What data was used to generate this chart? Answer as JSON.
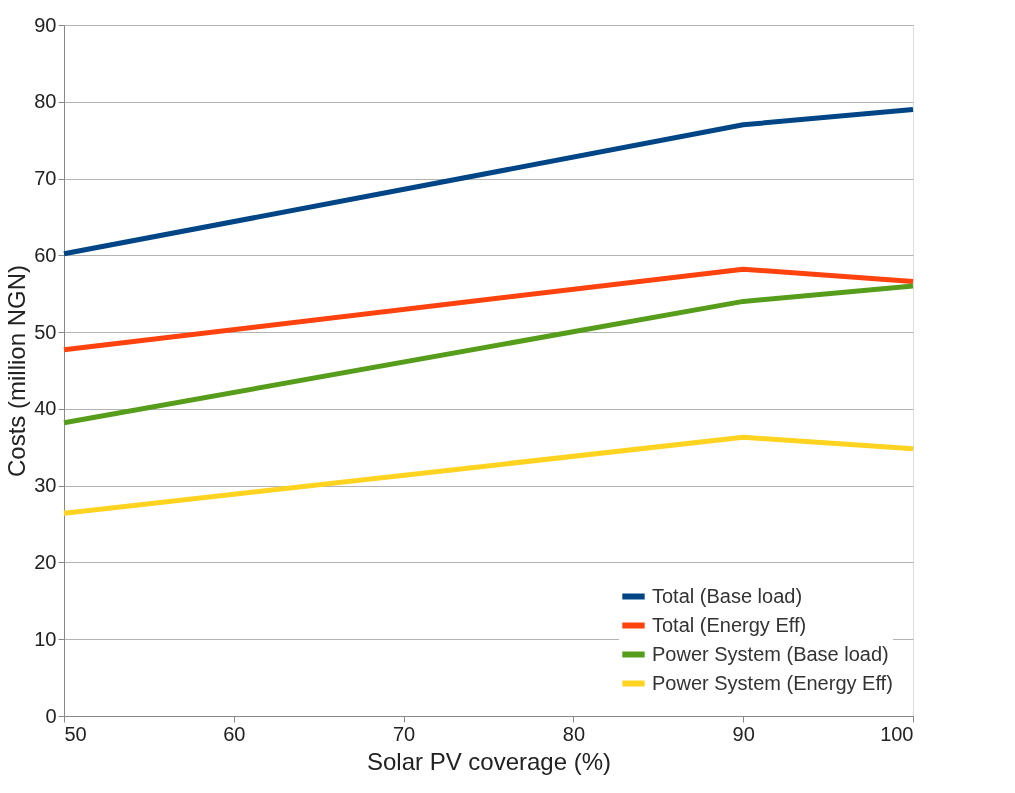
{
  "chart_data": {
    "type": "line",
    "xlabel": "Solar PV coverage (%)",
    "ylabel": "Costs (million NGN)",
    "x": [
      50,
      90,
      100
    ],
    "series": [
      {
        "name": "Total (Base load)",
        "color": "#004586",
        "values": [
          60.2,
          77.0,
          79.0
        ]
      },
      {
        "name": "Total (Energy Eff)",
        "color": "#ff420e",
        "values": [
          47.7,
          58.2,
          56.6
        ]
      },
      {
        "name": "Power System (Base load)",
        "color": "#579d1c",
        "values": [
          38.2,
          54.0,
          56.0
        ]
      },
      {
        "name": "Power System (Energy Eff)",
        "color": "#ffd320",
        "values": [
          26.4,
          36.3,
          34.8
        ]
      }
    ],
    "xlim": [
      50,
      100
    ],
    "xticks": [
      50,
      60,
      70,
      80,
      90,
      100
    ],
    "ylim": [
      0,
      90
    ],
    "yticks": [
      0,
      10,
      20,
      30,
      40,
      50,
      60,
      70,
      80,
      90
    ],
    "grid": "y",
    "legend": "bottom right",
    "marker": "none",
    "line_style": "solid"
  }
}
